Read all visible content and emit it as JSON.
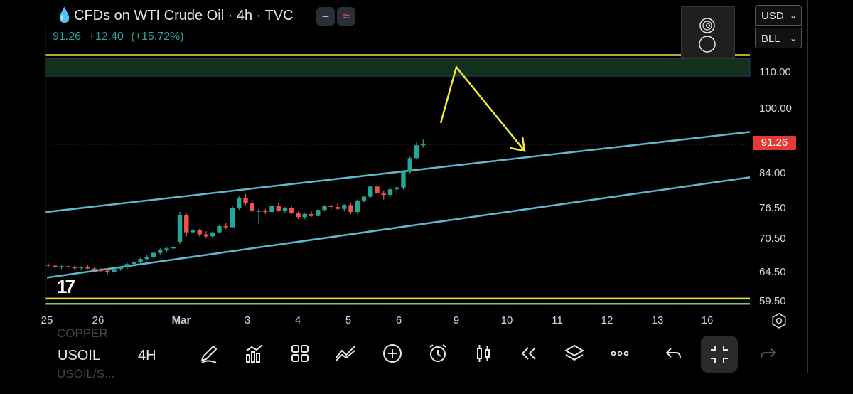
{
  "header": {
    "title": "CFDs on WTI Crude Oil · 4h · TVC",
    "quote_price": "91.26",
    "quote_change": "+12.40",
    "quote_change_pct": "(+15.72%)",
    "pill1_glyph": "−",
    "pill2_glyph": "≈"
  },
  "selectors": {
    "currency": "USD",
    "unit": "BLL"
  },
  "price_axis": {
    "labels": [
      "110.00",
      "100.00",
      "84.00",
      "76.50",
      "70.50",
      "64.50",
      "59.50"
    ],
    "current_price": "91.26"
  },
  "time_axis": {
    "labels": [
      "25",
      "26",
      "Mar",
      "3",
      "4",
      "5",
      "6",
      "9",
      "10",
      "11",
      "12",
      "13",
      "16"
    ]
  },
  "chart_data": {
    "type": "candlestick",
    "symbol": "USOIL",
    "interval": "4h",
    "last_price": 91.26,
    "candles_ohlc": [
      [
        65.9,
        66.1,
        65.4,
        65.7
      ],
      [
        65.7,
        65.9,
        65.3,
        65.5
      ],
      [
        65.5,
        65.8,
        65.1,
        65.6
      ],
      [
        65.6,
        65.9,
        65.2,
        65.4
      ],
      [
        65.4,
        65.7,
        65.0,
        65.3
      ],
      [
        65.3,
        65.6,
        64.9,
        65.5
      ],
      [
        65.5,
        65.8,
        65.1,
        65.2
      ],
      [
        65.2,
        65.5,
        64.8,
        65.0
      ],
      [
        65.0,
        65.3,
        64.6,
        64.8
      ],
      [
        64.8,
        65.1,
        64.2,
        64.5
      ],
      [
        64.5,
        65.3,
        64.2,
        65.1
      ],
      [
        65.1,
        65.6,
        64.8,
        65.4
      ],
      [
        65.4,
        66.2,
        65.1,
        66.0
      ],
      [
        66.0,
        66.6,
        65.7,
        66.3
      ],
      [
        66.3,
        67.1,
        66.0,
        66.9
      ],
      [
        66.9,
        67.6,
        66.6,
        67.3
      ],
      [
        67.3,
        68.2,
        67.0,
        68.0
      ],
      [
        68.0,
        68.8,
        67.7,
        68.5
      ],
      [
        68.5,
        69.1,
        68.2,
        68.8
      ],
      [
        68.8,
        69.4,
        68.5,
        69.1
      ],
      [
        70.0,
        75.8,
        69.6,
        75.2
      ],
      [
        75.2,
        75.6,
        71.0,
        71.8
      ],
      [
        71.8,
        72.6,
        71.1,
        72.2
      ],
      [
        72.2,
        72.5,
        71.0,
        71.4
      ],
      [
        71.4,
        72.0,
        70.6,
        71.0
      ],
      [
        71.0,
        72.0,
        70.8,
        71.8
      ],
      [
        71.8,
        73.2,
        71.6,
        73.0
      ],
      [
        73.0,
        73.6,
        72.4,
        72.8
      ],
      [
        72.8,
        77.0,
        72.6,
        76.6
      ],
      [
        76.6,
        79.2,
        76.2,
        78.8
      ],
      [
        78.8,
        79.6,
        77.2,
        77.6
      ],
      [
        77.6,
        78.4,
        75.6,
        76.0
      ],
      [
        76.0,
        76.4,
        73.4,
        76.0
      ],
      [
        76.0,
        76.4,
        75.4,
        75.8
      ],
      [
        75.8,
        77.2,
        75.6,
        77.0
      ],
      [
        77.0,
        77.6,
        75.8,
        76.0
      ],
      [
        76.0,
        76.8,
        75.6,
        76.6
      ],
      [
        76.6,
        76.9,
        75.4,
        75.6
      ],
      [
        75.6,
        75.9,
        74.4,
        74.8
      ],
      [
        74.8,
        75.6,
        74.4,
        75.4
      ],
      [
        75.4,
        76.0,
        74.8,
        75.0
      ],
      [
        75.0,
        76.4,
        74.8,
        76.2
      ],
      [
        76.2,
        77.2,
        75.9,
        77.0
      ],
      [
        77.0,
        77.4,
        76.2,
        76.8
      ],
      [
        76.8,
        77.6,
        76.2,
        76.4
      ],
      [
        76.4,
        77.4,
        76.0,
        77.2
      ],
      [
        77.2,
        77.6,
        75.4,
        75.8
      ],
      [
        75.8,
        78.4,
        75.4,
        78.2
      ],
      [
        78.2,
        79.2,
        77.8,
        79.0
      ],
      [
        79.0,
        81.4,
        78.8,
        81.2
      ],
      [
        81.2,
        82.0,
        79.4,
        79.8
      ],
      [
        79.8,
        80.4,
        78.4,
        79.4
      ],
      [
        79.4,
        81.0,
        79.0,
        80.6
      ],
      [
        80.6,
        81.4,
        79.8,
        81.0
      ],
      [
        81.0,
        84.8,
        80.6,
        84.4
      ],
      [
        84.4,
        88.2,
        84.0,
        87.8
      ],
      [
        87.8,
        91.8,
        87.4,
        91.0
      ],
      [
        91.0,
        92.4,
        90.4,
        91.26
      ]
    ],
    "channel": {
      "upper": {
        "start_x": "24",
        "start_y": 75.2,
        "end_x": "17",
        "end_y": 95.2,
        "color": "#5fb8d2"
      },
      "lower": {
        "start_x": "25",
        "start_y": 63.6,
        "end_x": "17",
        "end_y": 84.2,
        "color": "#5fb8d2"
      }
    },
    "horizontal_lines": [
      {
        "value": 114.8,
        "color": "#e8e83a"
      },
      {
        "value": 60.0,
        "color": "#e8e83a"
      },
      {
        "value": 59.1,
        "color": "#7cc46a"
      }
    ],
    "zone": {
      "from": 109.0,
      "to": 113.8,
      "color": "#13301a"
    },
    "projection_arrow_points": [
      [
        92.5,
        96.5
      ],
      [
        111.8,
        111.5
      ],
      [
        90.2,
        89.6
      ]
    ],
    "y_ticks": [
      110.0,
      100.0,
      84.0,
      76.5,
      70.5,
      64.5,
      59.5
    ],
    "grid": false,
    "up_color": "#26a69a",
    "down_color": "#ef5350",
    "annotation_color": "#f2ea3c"
  },
  "toolbar": {
    "symbol": "USOIL",
    "interval": "4H"
  },
  "background_ghost": {
    "line1": "COPPER",
    "line2": "USOIL/S..."
  }
}
